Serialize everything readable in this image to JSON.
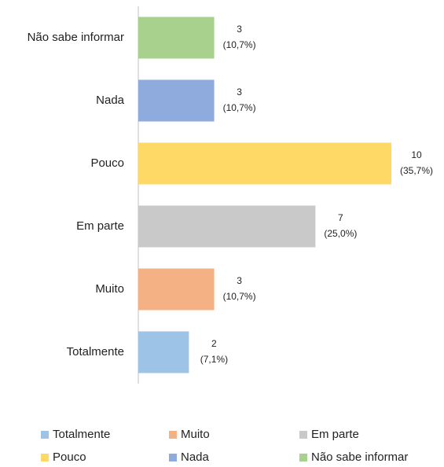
{
  "chart_data": {
    "type": "bar",
    "orientation": "horizontal",
    "categories": [
      "Não sabe informar",
      "Nada",
      "Pouco",
      "Em parte",
      "Muito",
      "Totalmente"
    ],
    "values": [
      3,
      3,
      10,
      7,
      3,
      2
    ],
    "value_labels": [
      [
        "3",
        "(10,7%)"
      ],
      [
        "3",
        "(10,7%)"
      ],
      [
        "10",
        "(35,7%)"
      ],
      [
        "7",
        "(25,0%)"
      ],
      [
        "3",
        "(10,7%)"
      ],
      [
        "2",
        "(7,1%)"
      ]
    ],
    "colors": [
      "#a9d18e",
      "#8faadc",
      "#ffd966",
      "#c9c9c9",
      "#f4b183",
      "#9dc3e6"
    ],
    "legend": "bottom"
  }
}
